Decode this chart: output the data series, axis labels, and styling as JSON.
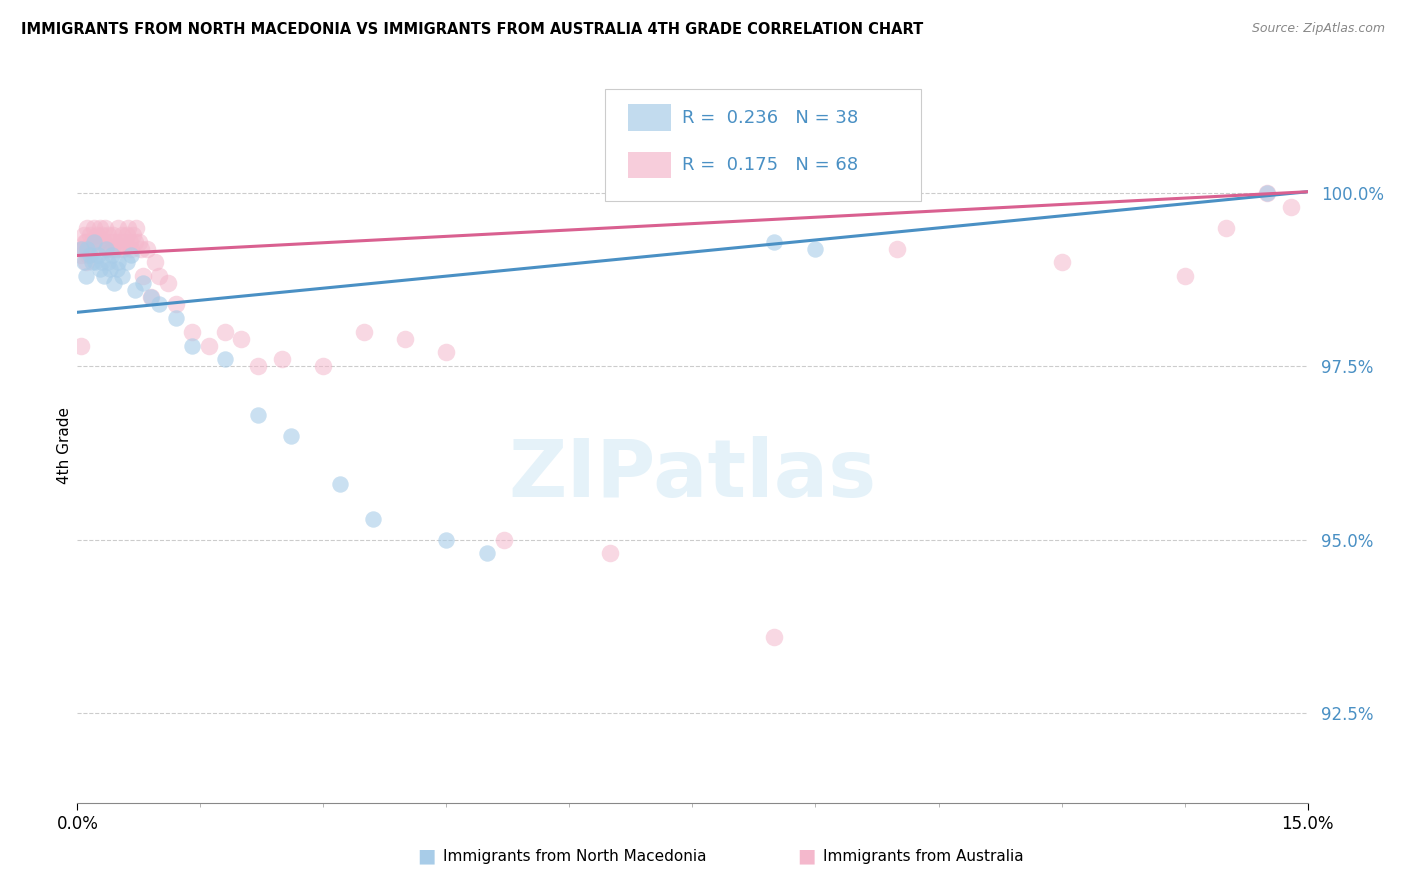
{
  "title": "IMMIGRANTS FROM NORTH MACEDONIA VS IMMIGRANTS FROM AUSTRALIA 4TH GRADE CORRELATION CHART",
  "source": "Source: ZipAtlas.com",
  "ylabel": "4th Grade",
  "xlim": [
    0.0,
    15.0
  ],
  "ylim": [
    91.2,
    101.5
  ],
  "yticks": [
    92.5,
    95.0,
    97.5,
    100.0
  ],
  "ytick_labels": [
    "92.5%",
    "95.0%",
    "97.5%",
    "100.0%"
  ],
  "legend_r1": "0.236",
  "legend_n1": "38",
  "legend_r2": "0.175",
  "legend_n2": "68",
  "blue_color": "#a8cce8",
  "pink_color": "#f4b8cc",
  "blue_line_color": "#4a90c4",
  "pink_line_color": "#d96090",
  "blue_trend": [
    98.28,
    100.02
  ],
  "pink_trend": [
    99.1,
    100.02
  ],
  "blue_x": [
    0.05,
    0.08,
    0.1,
    0.12,
    0.15,
    0.18,
    0.2,
    0.22,
    0.25,
    0.28,
    0.3,
    0.32,
    0.35,
    0.38,
    0.4,
    0.42,
    0.45,
    0.48,
    0.5,
    0.55,
    0.6,
    0.65,
    0.7,
    0.8,
    0.9,
    1.0,
    1.2,
    1.4,
    1.8,
    2.2,
    2.6,
    3.2,
    3.6,
    4.5,
    5.0,
    8.5,
    9.0,
    14.5
  ],
  "blue_y": [
    99.2,
    99.0,
    98.8,
    99.2,
    99.1,
    99.0,
    99.3,
    99.0,
    99.1,
    98.9,
    99.0,
    98.8,
    99.2,
    99.0,
    98.9,
    99.1,
    98.7,
    98.9,
    99.0,
    98.8,
    99.0,
    99.1,
    98.6,
    98.7,
    98.5,
    98.4,
    98.2,
    97.8,
    97.6,
    96.8,
    96.5,
    95.8,
    95.3,
    95.0,
    94.8,
    99.3,
    99.2,
    100.0
  ],
  "pink_x": [
    0.04,
    0.06,
    0.08,
    0.1,
    0.12,
    0.14,
    0.16,
    0.18,
    0.2,
    0.22,
    0.24,
    0.26,
    0.28,
    0.3,
    0.32,
    0.34,
    0.36,
    0.38,
    0.4,
    0.42,
    0.44,
    0.46,
    0.48,
    0.5,
    0.52,
    0.54,
    0.56,
    0.58,
    0.6,
    0.62,
    0.64,
    0.66,
    0.68,
    0.7,
    0.72,
    0.75,
    0.78,
    0.8,
    0.85,
    0.9,
    0.95,
    1.0,
    1.1,
    1.2,
    1.4,
    1.6,
    1.8,
    2.0,
    2.2,
    2.5,
    3.0,
    3.5,
    4.0,
    4.5,
    5.2,
    6.5,
    8.5,
    10.0,
    12.0,
    13.5,
    14.0,
    14.5,
    14.8,
    0.05,
    0.07,
    0.09,
    0.11,
    0.13
  ],
  "pink_y": [
    97.8,
    99.2,
    99.4,
    99.3,
    99.5,
    99.2,
    99.4,
    99.3,
    99.5,
    99.2,
    99.4,
    99.3,
    99.5,
    99.4,
    99.3,
    99.5,
    99.2,
    99.4,
    99.3,
    99.2,
    99.4,
    99.3,
    99.2,
    99.5,
    99.3,
    99.4,
    99.2,
    99.3,
    99.4,
    99.5,
    99.3,
    99.2,
    99.4,
    99.3,
    99.5,
    99.3,
    99.2,
    98.8,
    99.2,
    98.5,
    99.0,
    98.8,
    98.7,
    98.4,
    98.0,
    97.8,
    98.0,
    97.9,
    97.5,
    97.6,
    97.5,
    98.0,
    97.9,
    97.7,
    95.0,
    94.8,
    93.6,
    99.2,
    99.0,
    98.8,
    99.5,
    100.0,
    99.8,
    99.1,
    99.2,
    99.3,
    99.0,
    99.1
  ]
}
